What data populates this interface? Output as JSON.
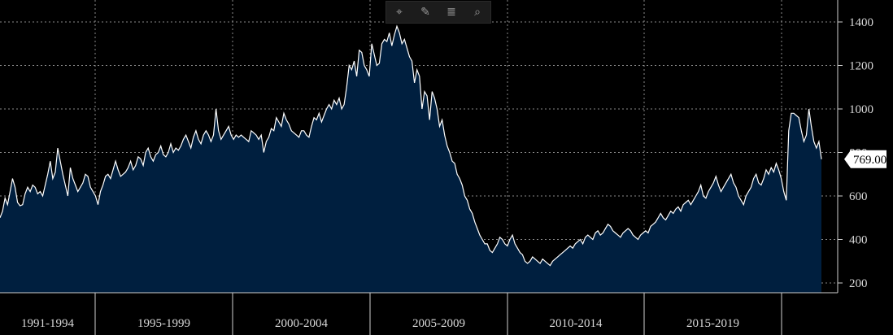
{
  "toolbar": {
    "items": [
      {
        "name": "crosshair-icon",
        "glyph": "⌖"
      },
      {
        "name": "pencil-icon",
        "glyph": "✎"
      },
      {
        "name": "list-icon",
        "glyph": "≣"
      },
      {
        "name": "zoom-icon",
        "glyph": "⌕"
      }
    ]
  },
  "colors": {
    "background": "#000000",
    "area_fill": "#001f3f",
    "line": "#ffffff",
    "grid": "#8a8a8a"
  },
  "chart_data": {
    "type": "area",
    "x_unit": "months from Jan 1991",
    "ylim": [
      170,
      1480
    ],
    "yticks": [
      200,
      400,
      600,
      800,
      1000,
      1200,
      1400
    ],
    "grid": true,
    "x_period_labels": [
      "1991-1994",
      "1995-1999",
      "2000-2004",
      "2005-2009",
      "2010-2014",
      "2015-2019"
    ],
    "last_value_label": "769.00",
    "last_value": 769,
    "series": [
      {
        "values": [
          500,
          530,
          590,
          560,
          620,
          680,
          640,
          570,
          555,
          560,
          610,
          640,
          620,
          650,
          640,
          610,
          620,
          600,
          650,
          700,
          760,
          680,
          710,
          820,
          760,
          700,
          650,
          600,
          730,
          680,
          650,
          620,
          640,
          660,
          700,
          690,
          640,
          620,
          600,
          560,
          620,
          650,
          690,
          700,
          680,
          720,
          760,
          720,
          690,
          700,
          710,
          730,
          760,
          720,
          740,
          780,
          770,
          740,
          800,
          820,
          780,
          760,
          790,
          800,
          830,
          790,
          780,
          800,
          840,
          800,
          820,
          810,
          830,
          860,
          880,
          850,
          820,
          870,
          900,
          860,
          840,
          880,
          900,
          880,
          850,
          880,
          1000,
          900,
          860,
          880,
          900,
          920,
          880,
          860,
          880,
          870,
          880,
          870,
          860,
          850,
          900,
          890,
          880,
          860,
          880,
          800,
          850,
          870,
          910,
          900,
          960,
          940,
          920,
          980,
          950,
          930,
          900,
          890,
          880,
          870,
          900,
          900,
          880,
          870,
          920,
          960,
          950,
          980,
          940,
          970,
          1000,
          1020,
          1000,
          1040,
          1020,
          1050,
          1000,
          1020,
          1100,
          1200,
          1180,
          1220,
          1150,
          1270,
          1260,
          1200,
          1180,
          1150,
          1300,
          1250,
          1200,
          1210,
          1300,
          1320,
          1310,
          1350,
          1290,
          1340,
          1380,
          1350,
          1300,
          1320,
          1280,
          1240,
          1220,
          1120,
          1180,
          1150,
          1000,
          1080,
          1060,
          950,
          1080,
          1050,
          1000,
          920,
          950,
          880,
          830,
          800,
          760,
          750,
          700,
          680,
          650,
          600,
          580,
          540,
          520,
          480,
          450,
          420,
          400,
          380,
          380,
          350,
          340,
          360,
          380,
          410,
          400,
          380,
          370,
          400,
          420,
          380,
          360,
          340,
          330,
          300,
          290,
          300,
          320,
          310,
          300,
          290,
          310,
          300,
          290,
          280,
          300,
          310,
          320,
          330,
          340,
          350,
          360,
          370,
          360,
          380,
          390,
          400,
          380,
          410,
          420,
          410,
          400,
          430,
          440,
          420,
          430,
          450,
          470,
          460,
          440,
          430,
          420,
          410,
          430,
          440,
          450,
          440,
          420,
          410,
          400,
          420,
          430,
          440,
          430,
          460,
          470,
          480,
          500,
          520,
          500,
          490,
          510,
          530,
          520,
          540,
          550,
          530,
          560,
          570,
          580,
          560,
          580,
          600,
          620,
          650,
          600,
          590,
          620,
          640,
          660,
          690,
          650,
          620,
          640,
          660,
          680,
          700,
          660,
          640,
          600,
          580,
          560,
          600,
          620,
          640,
          680,
          700,
          660,
          650,
          680,
          720,
          700,
          730,
          710,
          750,
          720,
          680,
          620,
          580,
          900,
          980,
          980,
          970,
          960,
          900,
          850,
          880,
          1000,
          920,
          850,
          820,
          850,
          769
        ]
      }
    ]
  }
}
